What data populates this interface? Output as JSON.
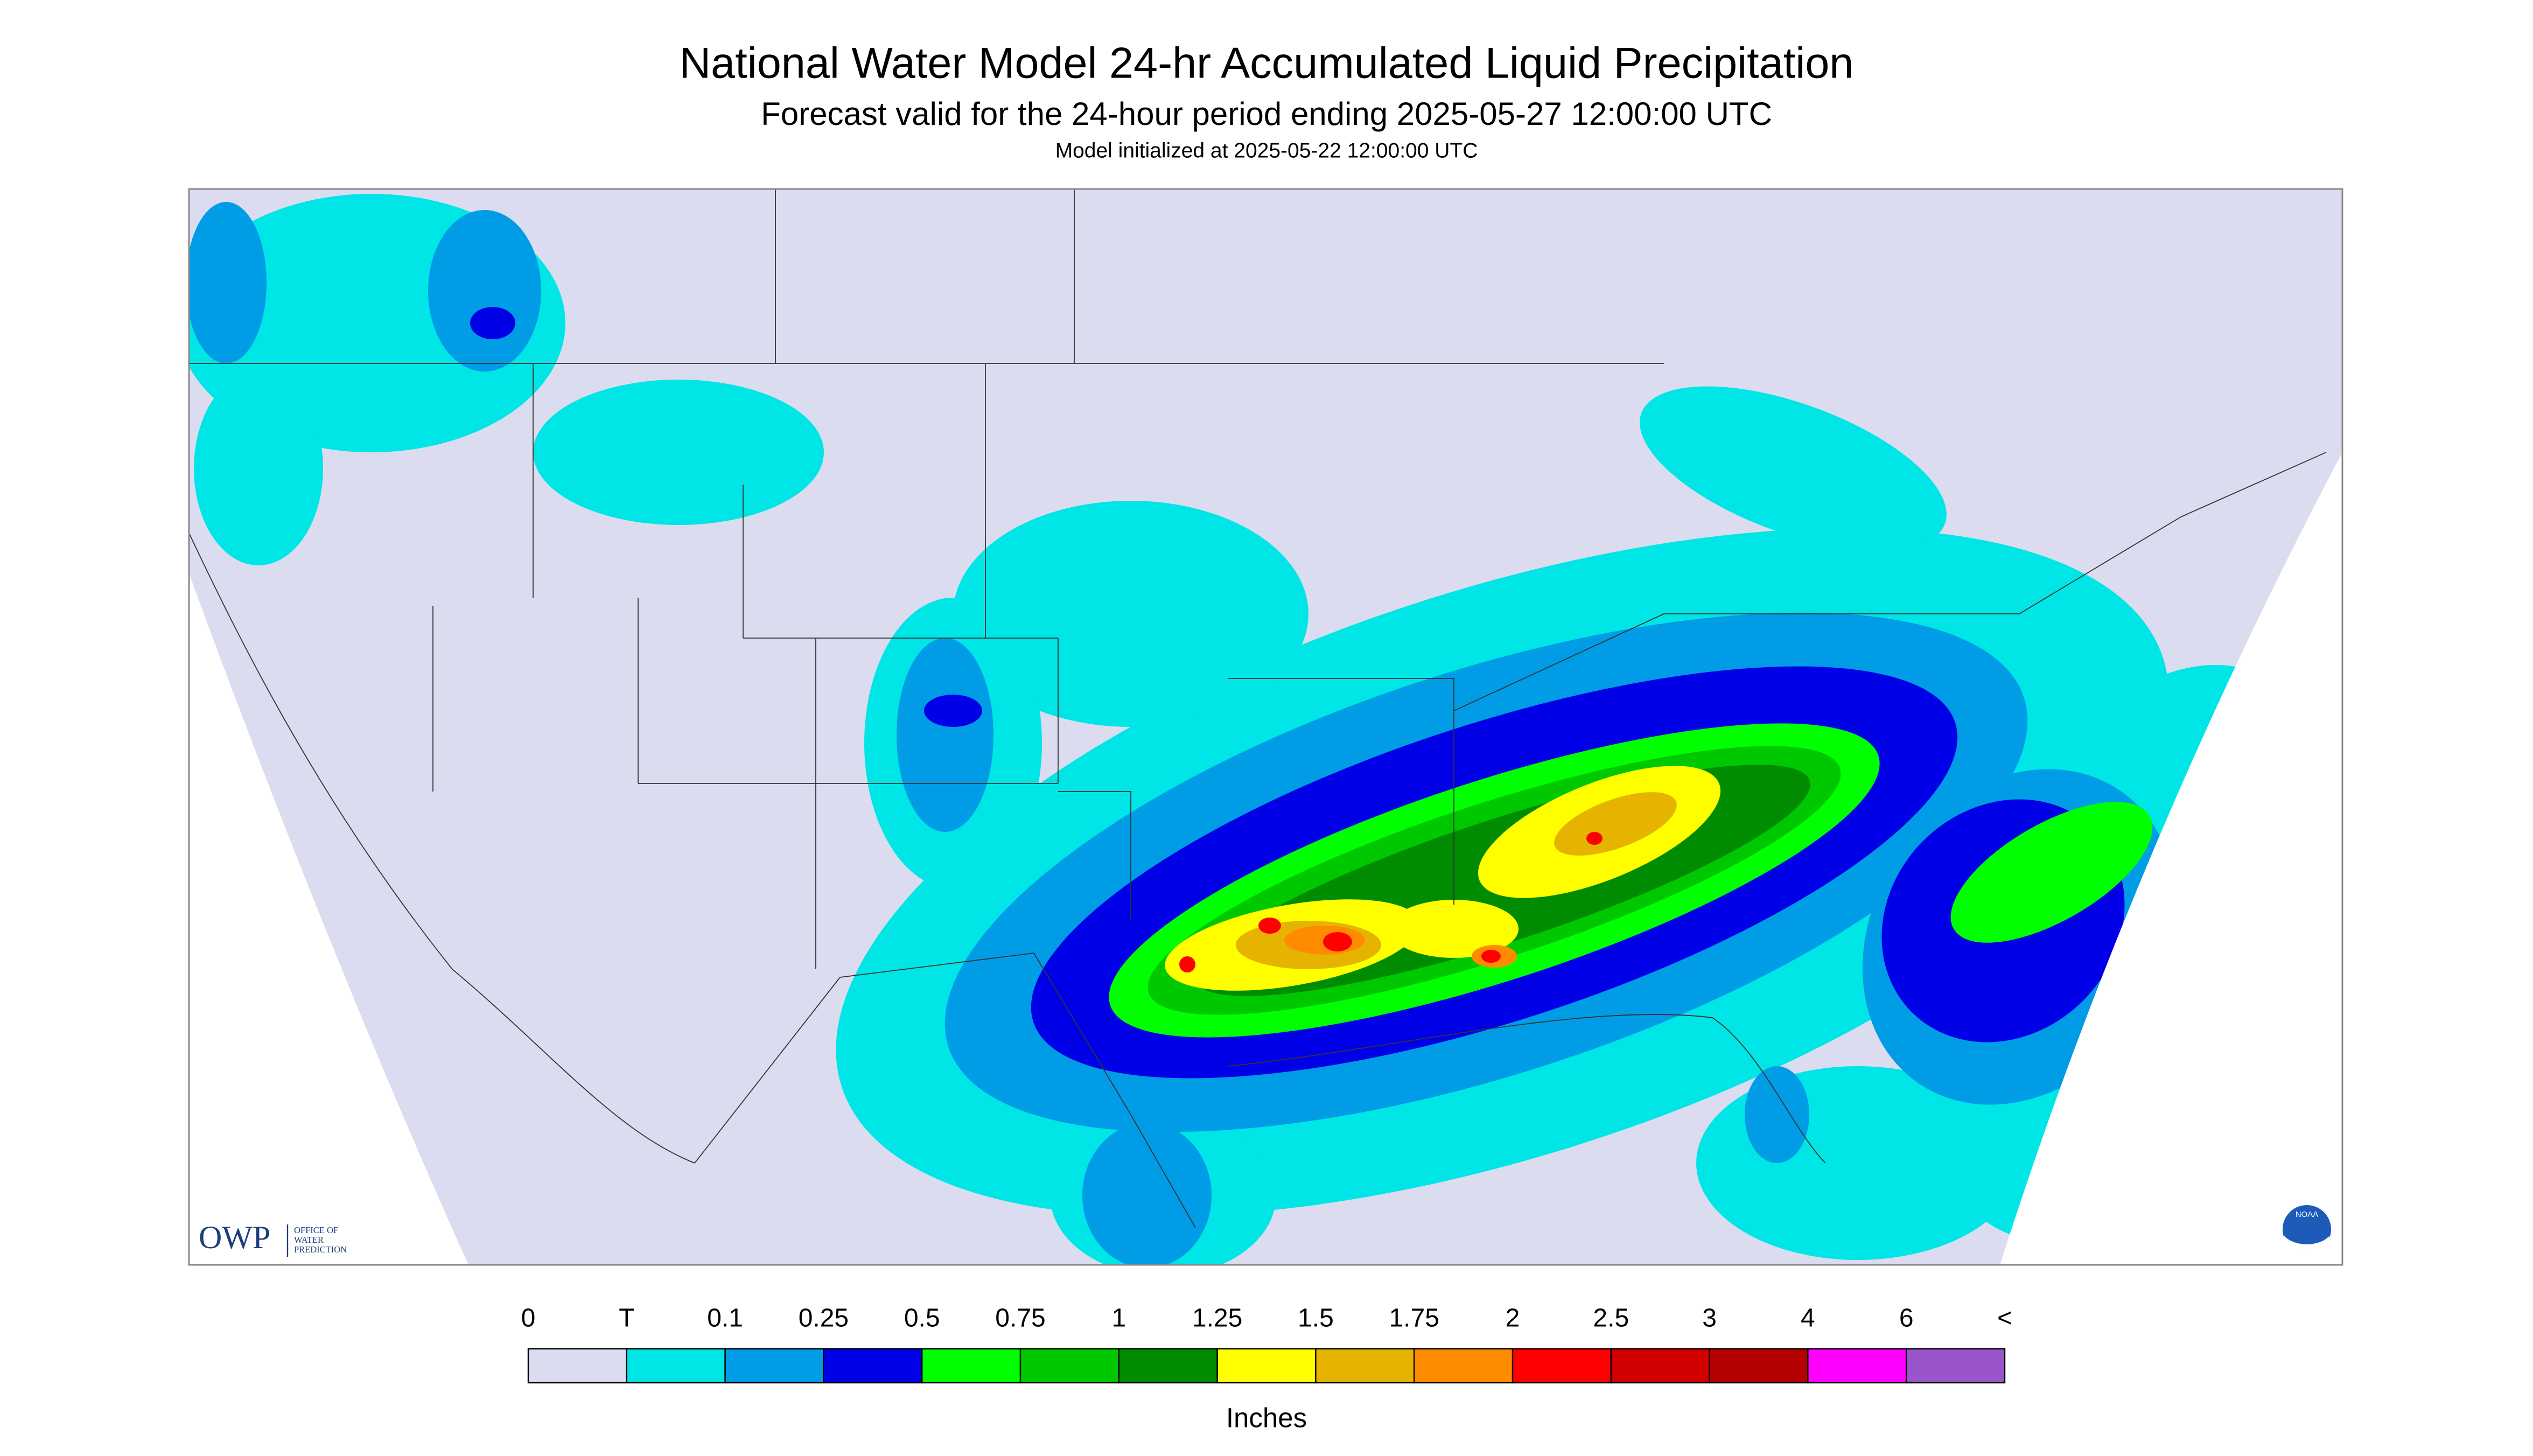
{
  "header": {
    "title": "National Water Model 24-hr Accumulated Liquid Precipitation",
    "subtitle": "Forecast valid for the 24-hour period ending 2025-05-27 12:00:00 UTC",
    "note": "Model initialized at 2025-05-22 12:00:00 UTC"
  },
  "logo": {
    "owp": "OWP",
    "owp_lines": [
      "OFFICE OF",
      "WATER",
      "PREDICTION"
    ],
    "noaa": "NOAA"
  },
  "legend": {
    "labels": [
      "0",
      "T",
      "0.1",
      "0.25",
      "0.5",
      "0.75",
      "1",
      "1.25",
      "1.5",
      "1.75",
      "2",
      "2.5",
      "3",
      "4",
      "6",
      "<"
    ],
    "colors": [
      "#dcdcf0",
      "#00e5e5",
      "#009ce6",
      "#0000e6",
      "#00ff00",
      "#00c800",
      "#008c00",
      "#ffff00",
      "#e6b400",
      "#ff8c00",
      "#ff0000",
      "#d20000",
      "#b40000",
      "#ff00ff",
      "#9955c9"
    ],
    "unit": "Inches"
  }
}
